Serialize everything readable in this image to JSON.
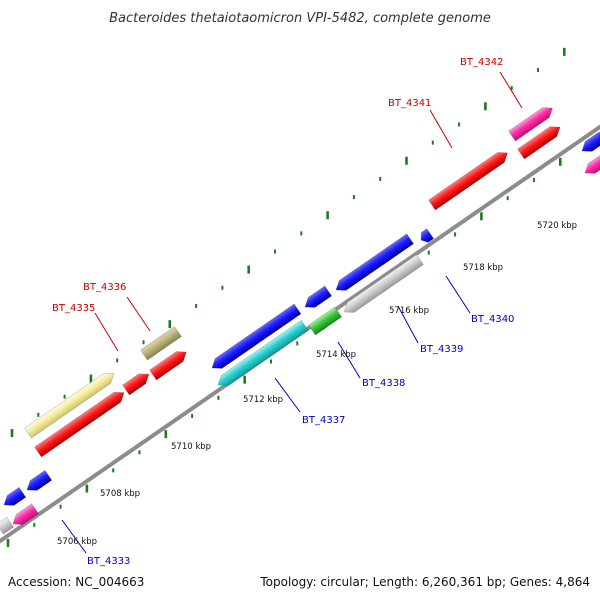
{
  "title": "Bacteroides thetaiotaomicron VPI-5482, complete genome",
  "footer": {
    "accession": "Accession: NC_004663",
    "summary": "Topology: circular; Length: 6,260,361 bp; Genes: 4,864"
  },
  "colors": {
    "backbone": "#8c8c8c",
    "tick": "#1e7a1e",
    "label_forward": "#cc0000",
    "label_reverse": "#0000cc"
  },
  "scale_labels": [
    "5706 kbp",
    "5708 kbp",
    "5710 kbp",
    "5712 kbp",
    "5714 kbp",
    "5716 kbp",
    "5718 kbp",
    "5720 kbp"
  ],
  "genes": [
    {
      "name": "BT_4333",
      "strand": "reverse"
    },
    {
      "name": "BT_4335",
      "strand": "forward"
    },
    {
      "name": "BT_4336",
      "strand": "forward"
    },
    {
      "name": "BT_4337",
      "strand": "reverse"
    },
    {
      "name": "BT_4338",
      "strand": "reverse"
    },
    {
      "name": "BT_4339",
      "strand": "reverse"
    },
    {
      "name": "BT_4340",
      "strand": "reverse"
    },
    {
      "name": "BT_4341",
      "strand": "forward"
    },
    {
      "name": "BT_4342",
      "strand": "forward"
    }
  ]
}
